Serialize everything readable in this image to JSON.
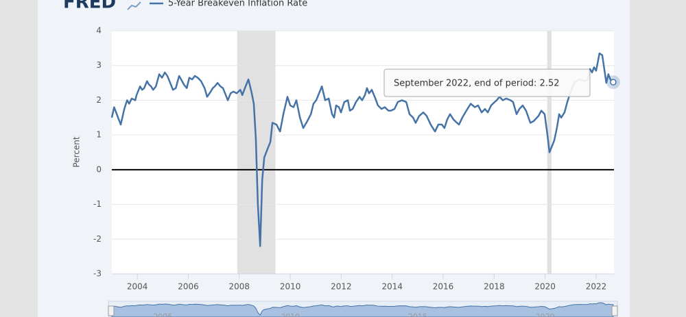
{
  "chart_data": {
    "type": "line",
    "logo": "FRED",
    "y_label": "Percent",
    "tooltip": "September 2022, end of period: 2.52",
    "grid": true,
    "legend_position": "top",
    "xlim": [
      2003.0,
      2022.7
    ],
    "xticks": [
      2004,
      2006,
      2008,
      2010,
      2012,
      2014,
      2016,
      2018,
      2020,
      2022
    ],
    "ylim": [
      -3,
      4
    ],
    "yticks": [
      -3,
      -2,
      -1,
      0,
      1,
      2,
      3,
      4
    ],
    "recessions": [
      [
        2007.92,
        2009.42
      ],
      [
        2020.08,
        2020.25
      ]
    ],
    "recession_color": "#e1e1e1",
    "navigator_xticks": [
      2005,
      2010,
      2015,
      2020
    ],
    "series": [
      {
        "name": "5-Year Breakeven Inflation Rate",
        "color": "#4572a7",
        "x": [
          2003.0,
          2003.09,
          2003.22,
          2003.35,
          2003.49,
          2003.6,
          2003.68,
          2003.78,
          2003.92,
          2003.97,
          2004.11,
          2004.19,
          2004.27,
          2004.38,
          2004.46,
          2004.54,
          2004.62,
          2004.73,
          2004.86,
          2004.97,
          2005.08,
          2005.18,
          2005.29,
          2005.4,
          2005.51,
          2005.64,
          2005.72,
          2005.83,
          2005.94,
          2006.04,
          2006.15,
          2006.26,
          2006.37,
          2006.5,
          2006.64,
          2006.74,
          2006.88,
          2006.96,
          2007.04,
          2007.15,
          2007.26,
          2007.36,
          2007.47,
          2007.55,
          2007.66,
          2007.77,
          2007.9,
          2008.04,
          2008.12,
          2008.22,
          2008.36,
          2008.49,
          2008.57,
          2008.65,
          2008.73,
          2008.82,
          2008.9,
          2008.98,
          2009.11,
          2009.22,
          2009.3,
          2009.46,
          2009.6,
          2009.73,
          2009.89,
          2010.0,
          2010.13,
          2010.24,
          2010.38,
          2010.51,
          2010.67,
          2010.81,
          2010.91,
          2011.02,
          2011.13,
          2011.24,
          2011.37,
          2011.51,
          2011.64,
          2011.72,
          2011.8,
          2011.91,
          2011.99,
          2012.12,
          2012.26,
          2012.34,
          2012.45,
          2012.58,
          2012.72,
          2012.82,
          2012.93,
          2013.01,
          2013.09,
          2013.2,
          2013.34,
          2013.44,
          2013.58,
          2013.71,
          2013.85,
          2013.95,
          2014.09,
          2014.22,
          2014.38,
          2014.55,
          2014.68,
          2014.82,
          2014.92,
          2015.06,
          2015.22,
          2015.35,
          2015.51,
          2015.68,
          2015.81,
          2015.95,
          2016.05,
          2016.16,
          2016.27,
          2016.4,
          2016.54,
          2016.62,
          2016.75,
          2016.91,
          2017.08,
          2017.24,
          2017.37,
          2017.51,
          2017.64,
          2017.75,
          2017.88,
          2018.02,
          2018.1,
          2018.21,
          2018.34,
          2018.47,
          2018.64,
          2018.74,
          2018.88,
          2018.99,
          2019.12,
          2019.25,
          2019.42,
          2019.55,
          2019.74,
          2019.85,
          2019.98,
          2020.09,
          2020.17,
          2020.28,
          2020.36,
          2020.46,
          2020.55,
          2020.63,
          2020.76,
          2020.87,
          2020.98,
          2021.14,
          2021.35,
          2021.54,
          2021.68,
          2021.76,
          2021.84,
          2021.92,
          2022.0,
          2022.13,
          2022.24,
          2022.32,
          2022.4,
          2022.48,
          2022.56,
          2022.67
        ],
        "values": [
          1.5,
          1.8,
          1.55,
          1.3,
          1.75,
          2.0,
          1.9,
          2.05,
          2.0,
          2.15,
          2.4,
          2.3,
          2.35,
          2.55,
          2.45,
          2.4,
          2.3,
          2.4,
          2.75,
          2.65,
          2.8,
          2.7,
          2.5,
          2.3,
          2.35,
          2.7,
          2.6,
          2.45,
          2.35,
          2.65,
          2.6,
          2.7,
          2.65,
          2.55,
          2.35,
          2.1,
          2.25,
          2.35,
          2.4,
          2.5,
          2.4,
          2.35,
          2.15,
          2.0,
          2.2,
          2.25,
          2.2,
          2.3,
          2.15,
          2.35,
          2.6,
          2.2,
          1.9,
          0.9,
          -1.0,
          -2.2,
          -0.3,
          0.35,
          0.6,
          0.8,
          1.35,
          1.3,
          1.1,
          1.6,
          2.1,
          1.85,
          1.8,
          2.0,
          1.5,
          1.2,
          1.4,
          1.6,
          1.9,
          2.0,
          2.2,
          2.4,
          2.0,
          2.05,
          1.6,
          1.5,
          1.85,
          1.8,
          1.65,
          1.95,
          2.0,
          1.7,
          1.75,
          1.95,
          2.1,
          2.0,
          2.15,
          2.35,
          2.2,
          2.3,
          2.05,
          1.85,
          1.75,
          1.8,
          1.7,
          1.7,
          1.75,
          1.95,
          2.0,
          1.95,
          1.6,
          1.5,
          1.35,
          1.55,
          1.65,
          1.55,
          1.3,
          1.1,
          1.3,
          1.3,
          1.2,
          1.45,
          1.6,
          1.45,
          1.35,
          1.3,
          1.5,
          1.7,
          1.9,
          1.8,
          1.85,
          1.65,
          1.75,
          1.65,
          1.85,
          1.95,
          2.0,
          2.1,
          2.0,
          2.05,
          2.0,
          1.95,
          1.6,
          1.75,
          1.85,
          1.7,
          1.35,
          1.4,
          1.55,
          1.7,
          1.6,
          1.0,
          0.5,
          0.7,
          0.85,
          1.2,
          1.6,
          1.5,
          1.65,
          1.95,
          2.2,
          2.5,
          2.6,
          2.55,
          2.6,
          2.9,
          2.8,
          2.95,
          2.85,
          3.35,
          3.3,
          2.9,
          2.5,
          2.75,
          2.6,
          2.52
        ]
      }
    ]
  }
}
